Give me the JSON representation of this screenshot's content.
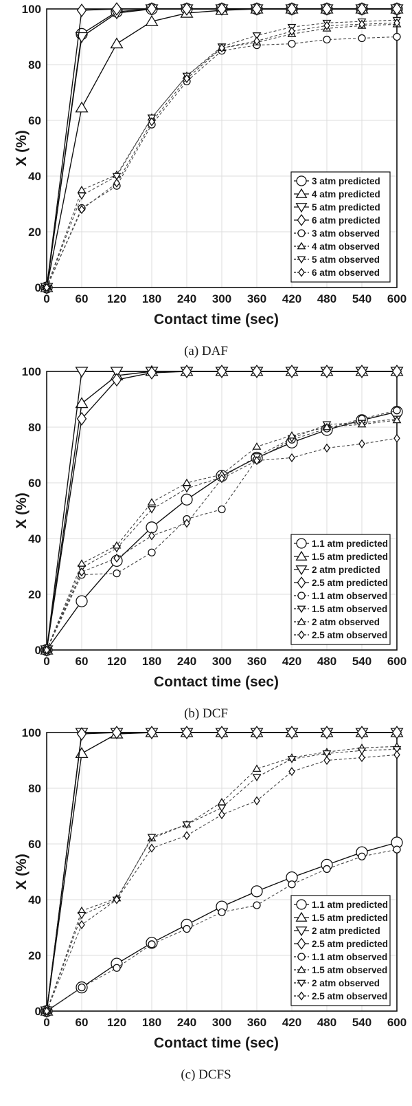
{
  "chart_data": [
    {
      "type": "line",
      "caption": "(a)  DAF",
      "xlabel": "Contact time (sec)",
      "ylabel": "X (%)",
      "xlim": [
        0,
        600
      ],
      "ylim": [
        0,
        100
      ],
      "xticks": [
        0,
        60,
        120,
        180,
        240,
        300,
        360,
        420,
        480,
        540,
        600
      ],
      "yticks": [
        0,
        20,
        40,
        60,
        80,
        100
      ],
      "grid": true,
      "legend_position": "bottom-right",
      "series": [
        {
          "name": "3 atm predicted",
          "marker": "circle",
          "style": "solid",
          "x": [
            0,
            60,
            120,
            180,
            240,
            300,
            360,
            420,
            480,
            540,
            600
          ],
          "y": [
            0,
            91,
            99,
            100,
            100,
            100,
            100,
            100,
            100,
            100,
            100
          ]
        },
        {
          "name": "4 atm predicted",
          "marker": "triangle-up",
          "style": "solid",
          "x": [
            0,
            60,
            120,
            180,
            240,
            300,
            360,
            420,
            480,
            540,
            600
          ],
          "y": [
            0,
            64.5,
            87.5,
            95.5,
            98.5,
            99.5,
            100,
            100,
            100,
            100,
            100
          ]
        },
        {
          "name": "5 atm predicted",
          "marker": "triangle-down",
          "style": "solid",
          "x": [
            0,
            60,
            120,
            180,
            240,
            300,
            360,
            420,
            480,
            540,
            600
          ],
          "y": [
            0,
            90,
            98.5,
            100,
            100,
            100,
            100,
            100,
            100,
            100,
            100
          ]
        },
        {
          "name": "6 atm predicted",
          "marker": "diamond",
          "style": "solid",
          "x": [
            0,
            60,
            120,
            180,
            240,
            300,
            360,
            420,
            480,
            540,
            600
          ],
          "y": [
            0,
            99.5,
            100,
            100,
            100,
            100,
            100,
            100,
            100,
            100,
            100
          ]
        },
        {
          "name": "3 atm observed",
          "marker": "circle",
          "style": "dashed",
          "x": [
            0,
            60,
            120,
            180,
            240,
            300,
            360,
            420,
            480,
            540,
            600
          ],
          "y": [
            0,
            28.5,
            36.5,
            58.5,
            74,
            85,
            87,
            87.5,
            89,
            89.5,
            90
          ]
        },
        {
          "name": "4 atm observed",
          "marker": "triangle-up",
          "style": "dashed",
          "x": [
            0,
            60,
            120,
            180,
            240,
            300,
            360,
            420,
            480,
            540,
            600
          ],
          "y": [
            0,
            35,
            40.5,
            61,
            76,
            86,
            88,
            91,
            93,
            94,
            94.5
          ]
        },
        {
          "name": "5 atm observed",
          "marker": "triangle-down",
          "style": "dashed",
          "x": [
            0,
            60,
            120,
            180,
            240,
            300,
            360,
            420,
            480,
            540,
            600
          ],
          "y": [
            0,
            33,
            40,
            61,
            76,
            86.5,
            90.5,
            93.5,
            95,
            95.5,
            96
          ]
        },
        {
          "name": "6 atm observed",
          "marker": "diamond",
          "style": "dashed",
          "x": [
            0,
            60,
            120,
            180,
            240,
            300,
            360,
            420,
            480,
            540,
            600
          ],
          "y": [
            0,
            28,
            37.5,
            59.5,
            75,
            86,
            88.5,
            92,
            94,
            94.5,
            95
          ]
        }
      ]
    },
    {
      "type": "line",
      "caption": "(b)  DCF",
      "xlabel": "Contact time (sec)",
      "ylabel": "X (%)",
      "xlim": [
        0,
        600
      ],
      "ylim": [
        0,
        100
      ],
      "xticks": [
        0,
        60,
        120,
        180,
        240,
        300,
        360,
        420,
        480,
        540,
        600
      ],
      "yticks": [
        0,
        20,
        40,
        60,
        80,
        100
      ],
      "grid": true,
      "legend_position": "bottom-right",
      "series": [
        {
          "name": "1.1 atm predicted",
          "marker": "circle",
          "style": "solid",
          "x": [
            0,
            60,
            120,
            180,
            240,
            300,
            360,
            420,
            480,
            540,
            600
          ],
          "y": [
            0,
            17.5,
            32,
            44,
            54,
            62.5,
            69,
            74.5,
            79,
            82.5,
            85.5
          ]
        },
        {
          "name": "1.5 atm predicted",
          "marker": "triangle-up",
          "style": "solid",
          "x": [
            0,
            60,
            120,
            180,
            240,
            300,
            360,
            420,
            480,
            540,
            600
          ],
          "y": [
            0,
            88.5,
            98.5,
            100,
            100,
            100,
            100,
            100,
            100,
            100,
            100
          ]
        },
        {
          "name": "2  atm predicted",
          "marker": "triangle-down",
          "style": "solid",
          "x": [
            0,
            60,
            120,
            180,
            240,
            300,
            360,
            420,
            480,
            540,
            600
          ],
          "y": [
            0,
            100,
            100,
            100,
            100,
            100,
            100,
            100,
            100,
            100,
            100
          ]
        },
        {
          "name": "2.5 atm predicted",
          "marker": "diamond",
          "style": "solid",
          "x": [
            0,
            60,
            120,
            180,
            240,
            300,
            360,
            420,
            480,
            540,
            600
          ],
          "y": [
            0,
            83,
            97,
            99.5,
            100,
            100,
            100,
            100,
            100,
            100,
            100
          ]
        },
        {
          "name": "1.1 atm observed",
          "marker": "circle",
          "style": "dashed",
          "x": [
            0,
            60,
            120,
            180,
            240,
            300,
            360,
            420,
            480,
            540,
            600
          ],
          "y": [
            0,
            27,
            27.5,
            35,
            47,
            50.5,
            68.5,
            75.5,
            79.5,
            83,
            86
          ]
        },
        {
          "name": "1.5 atm observed",
          "marker": "triangle-down",
          "style": "dashed",
          "x": [
            0,
            60,
            120,
            180,
            240,
            300,
            360,
            420,
            480,
            540,
            600
          ],
          "y": [
            0,
            29.5,
            36.5,
            50.5,
            58,
            62,
            69.5,
            76,
            81,
            81.5,
            83
          ]
        },
        {
          "name": "2  atm observed",
          "marker": "triangle-up",
          "style": "dashed",
          "x": [
            0,
            60,
            120,
            180,
            240,
            300,
            360,
            420,
            480,
            540,
            600
          ],
          "y": [
            0,
            31,
            37.5,
            53,
            60,
            63,
            73,
            77,
            80,
            81,
            82.5
          ]
        },
        {
          "name": "2.5 atm observed",
          "marker": "diamond",
          "style": "dashed",
          "x": [
            0,
            60,
            120,
            180,
            240,
            300,
            360,
            420,
            480,
            540,
            600
          ],
          "y": [
            0,
            28,
            33,
            41,
            45.5,
            61.5,
            68,
            69,
            72.5,
            74,
            76
          ]
        }
      ]
    },
    {
      "type": "line",
      "caption": "(c)  DCFS",
      "xlabel": "Contact time (sec)",
      "ylabel": "X (%)",
      "xlim": [
        0,
        600
      ],
      "ylim": [
        0,
        100
      ],
      "xticks": [
        0,
        60,
        120,
        180,
        240,
        300,
        360,
        420,
        480,
        540,
        600
      ],
      "yticks": [
        0,
        20,
        40,
        60,
        80,
        100
      ],
      "grid": true,
      "legend_position": "bottom-right",
      "series": [
        {
          "name": "1.1 atm predicted",
          "marker": "circle",
          "style": "solid",
          "x": [
            0,
            60,
            120,
            180,
            240,
            300,
            360,
            420,
            480,
            540,
            600
          ],
          "y": [
            0,
            8.5,
            17,
            24.5,
            31,
            37.5,
            43,
            48,
            52.5,
            57,
            60.5
          ]
        },
        {
          "name": "1.5 atm predicted",
          "marker": "triangle-up",
          "style": "solid",
          "x": [
            0,
            60,
            120,
            180,
            240,
            300,
            360,
            420,
            480,
            540,
            600
          ],
          "y": [
            0,
            92.5,
            99.5,
            100,
            100,
            100,
            100,
            100,
            100,
            100,
            100
          ]
        },
        {
          "name": "2  atm predicted",
          "marker": "triangle-down",
          "style": "solid",
          "x": [
            0,
            60,
            120,
            180,
            240,
            300,
            360,
            420,
            480,
            540,
            600
          ],
          "y": [
            0,
            100,
            100,
            100,
            100,
            100,
            100,
            100,
            100,
            100,
            100
          ]
        },
        {
          "name": "2.5 atm predicted",
          "marker": "diamond",
          "style": "solid",
          "x": [
            0,
            60,
            120,
            180,
            240,
            300,
            360,
            420,
            480,
            540,
            600
          ],
          "y": [
            0,
            99.5,
            100,
            100,
            100,
            100,
            100,
            100,
            100,
            100,
            100
          ]
        },
        {
          "name": "1.1 atm observed",
          "marker": "circle",
          "style": "dashed",
          "x": [
            0,
            60,
            120,
            180,
            240,
            300,
            360,
            420,
            480,
            540,
            600
          ],
          "y": [
            0,
            8.5,
            15.5,
            24,
            29.5,
            35.5,
            38,
            45.5,
            51,
            55.5,
            58
          ]
        },
        {
          "name": "1.5 atm observed",
          "marker": "triangle-up",
          "style": "dashed",
          "x": [
            0,
            60,
            120,
            180,
            240,
            300,
            360,
            420,
            480,
            540,
            600
          ],
          "y": [
            0,
            36,
            40.5,
            62,
            67,
            75,
            87,
            91,
            93,
            94.5,
            95
          ]
        },
        {
          "name": "2  atm observed",
          "marker": "triangle-down",
          "style": "dashed",
          "x": [
            0,
            60,
            120,
            180,
            240,
            300,
            360,
            420,
            480,
            540,
            600
          ],
          "y": [
            0,
            34.5,
            40,
            62.5,
            67,
            73,
            84,
            90.5,
            92.5,
            93.5,
            94
          ]
        },
        {
          "name": "2.5 atm observed",
          "marker": "diamond",
          "style": "dashed",
          "x": [
            0,
            60,
            120,
            180,
            240,
            300,
            360,
            420,
            480,
            540,
            600
          ],
          "y": [
            0,
            31,
            40,
            58.5,
            63,
            70.5,
            75.5,
            86,
            90,
            91,
            92
          ]
        }
      ]
    }
  ]
}
